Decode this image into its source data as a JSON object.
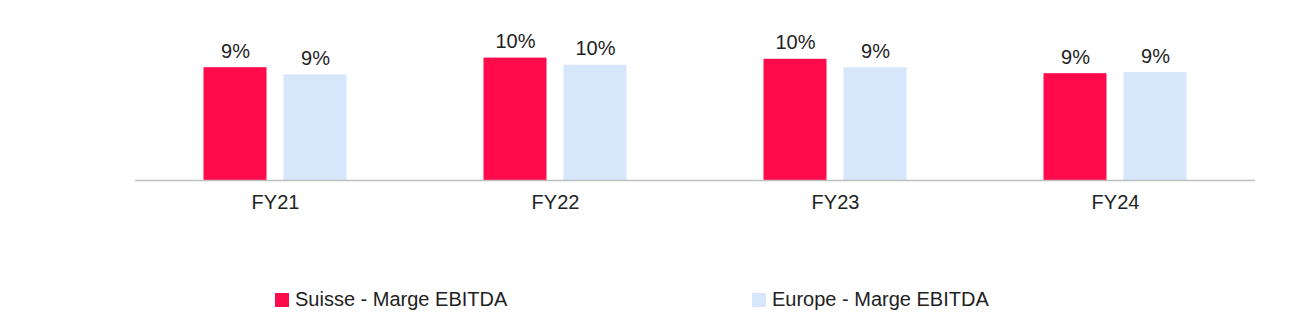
{
  "chart_data": {
    "type": "bar",
    "categories": [
      "FY21",
      "FY22",
      "FY23",
      "FY24"
    ],
    "series": [
      {
        "name": "Suisse - Marge EBITDA",
        "color": "#ff0a4b",
        "values": [
          9.4,
          10.2,
          10.1,
          8.9
        ],
        "value_labels": [
          "9%",
          "10%",
          "10%",
          "9%"
        ]
      },
      {
        "name": "Europe - Marge EBITDA",
        "color": "#d6e6fb",
        "values": [
          8.8,
          9.6,
          9.4,
          9.0
        ],
        "value_labels": [
          "9%",
          "10%",
          "9%",
          "9%"
        ]
      }
    ],
    "ylim": [
      0,
      12
    ],
    "data_labels": true,
    "tick_labels": "x",
    "grid": false,
    "legend": "bottom"
  }
}
